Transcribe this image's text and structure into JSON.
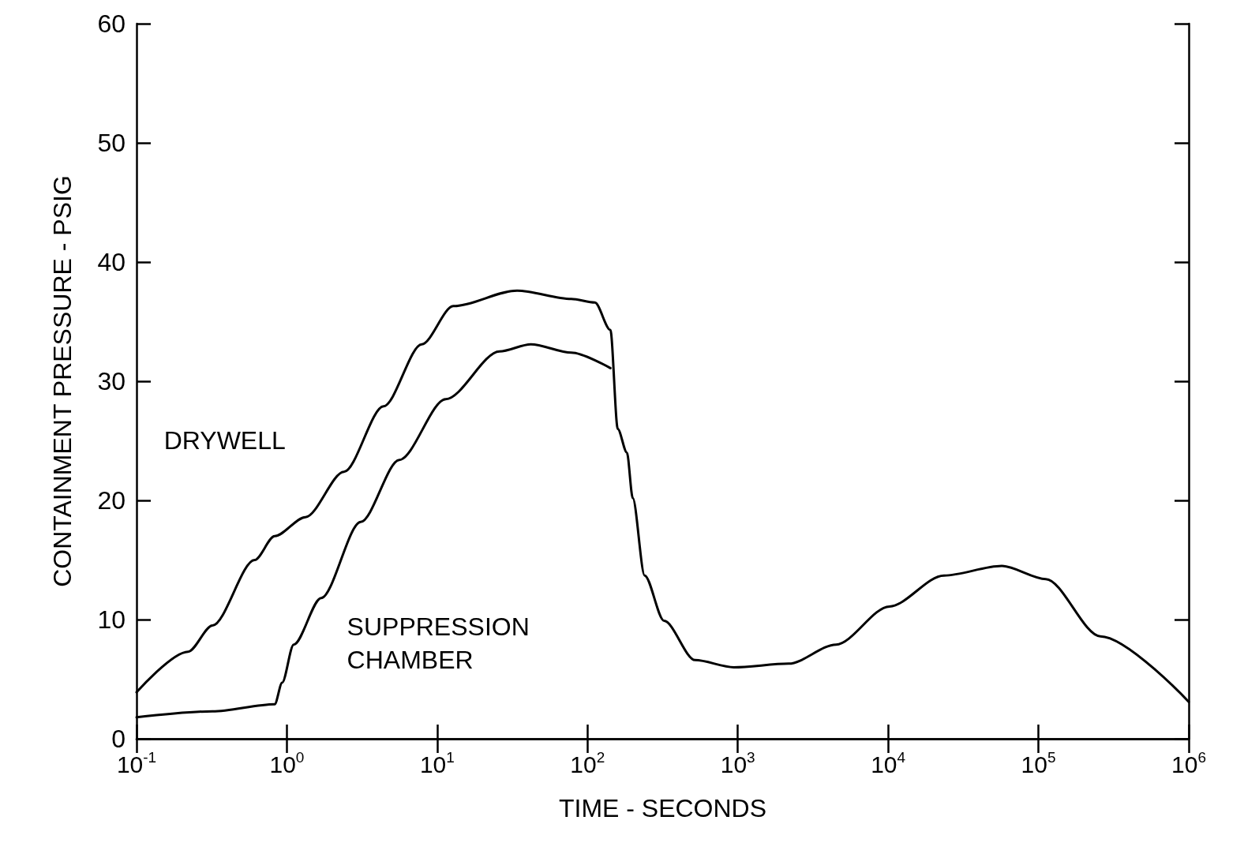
{
  "chart_data": {
    "type": "line",
    "xlabel": "TIME - SECONDS",
    "ylabel": "CONTAINMENT PRESSURE - PSIG",
    "log": "x",
    "grid": false,
    "legend": false,
    "marker": "none",
    "line_style": "solid",
    "xlim": [
      0.1,
      1000000
    ],
    "ylim": [
      0,
      60
    ],
    "xticks": [
      {
        "value": 0.1,
        "label": "10$^{-1}$"
      },
      {
        "value": 1,
        "label": "10$^{0}$"
      },
      {
        "value": 10,
        "label": "10$^{1}$"
      },
      {
        "value": 100,
        "label": "10$^{2}$"
      },
      {
        "value": 1000,
        "label": "10$^{3}$"
      },
      {
        "value": 10000,
        "label": "10$^{4}$"
      },
      {
        "value": 100000,
        "label": "10$^{5}$"
      },
      {
        "value": 1000000,
        "label": "10$^{6}$"
      }
    ],
    "yticks": [
      0,
      10,
      20,
      30,
      40,
      50,
      60
    ],
    "series": [
      {
        "name": "DRYWELL",
        "color": "#000000",
        "x": [
          0.1,
          0.22,
          0.32,
          0.61,
          0.83,
          1.33,
          2.4,
          4.4,
          7.9,
          12.8,
          34,
          78,
          112,
          142,
          159,
          183,
          200,
          240,
          323,
          520,
          940,
          2180,
          4500,
          10200,
          23500,
          57000,
          112000,
          258000,
          1000000
        ],
        "values": [
          3.9,
          7.3,
          9.5,
          15.0,
          17.0,
          18.6,
          22.4,
          27.9,
          33.1,
          36.3,
          37.6,
          36.9,
          36.6,
          34.3,
          26,
          24,
          20.2,
          13.7,
          9.9,
          6.6,
          6.0,
          6.3,
          7.9,
          11.1,
          13.7,
          14.5,
          13.4,
          8.6,
          3.1
        ]
      },
      {
        "name": "SUPPRESSION CHAMBER",
        "color": "#000000",
        "x": [
          0.1,
          0.32,
          0.83,
          0.93,
          1.11,
          1.69,
          3.1,
          5.6,
          11.4,
          26,
          42,
          78,
          142
        ],
        "values": [
          1.8,
          2.3,
          2.9,
          4.7,
          7.9,
          11.8,
          18.2,
          23.4,
          28.5,
          32.5,
          33.1,
          32.4,
          31.1
        ]
      }
    ]
  }
}
